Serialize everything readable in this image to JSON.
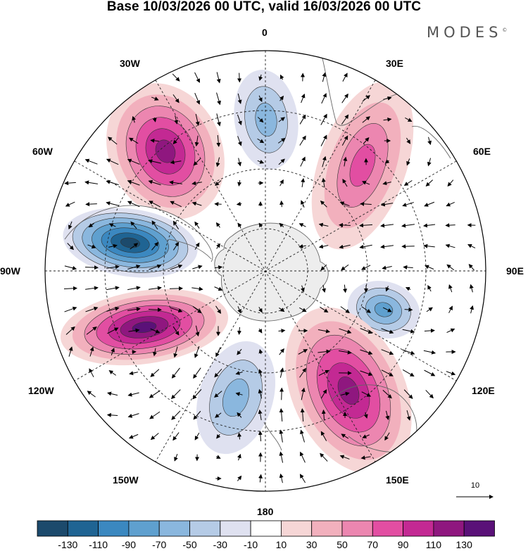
{
  "title": "Base 10/03/2026 00 UTC, valid 16/03/2026 00 UTC",
  "brand": "MODES",
  "brand_mark": "©",
  "longitude_labels": {
    "l0": "0",
    "l30e": "30E",
    "l60e": "60E",
    "l90e": "90E",
    "l120e": "120E",
    "l150e": "150E",
    "l180": "180",
    "l150w": "150W",
    "l120w": "120W",
    "l90w": "90W",
    "l60w": "60W",
    "l30w": "30W"
  },
  "vector_reference": {
    "label": "10",
    "magnitude": 10
  },
  "colorbar": {
    "ticks": [
      "-130",
      "-110",
      "-90",
      "-70",
      "-50",
      "-30",
      "-10",
      "10",
      "30",
      "50",
      "70",
      "90",
      "110",
      "130"
    ],
    "colors": [
      "#1c4a6c",
      "#1f6493",
      "#3b88c0",
      "#5fa0cf",
      "#8ab7de",
      "#b5cbe6",
      "#dfe1f0",
      "#ffffff",
      "#f6d6d6",
      "#f2b0bd",
      "#ec86b0",
      "#e24ea2",
      "#c32993",
      "#8f177f",
      "#5a1178"
    ]
  },
  "anomaly_centers": [
    {
      "id": "neg-atlantic",
      "value": -70
    },
    {
      "id": "pos-southatlantic",
      "value": 100
    },
    {
      "id": "pos-africa",
      "value": 70
    },
    {
      "id": "neg-pacific",
      "value": -140
    },
    {
      "id": "pos-pacific",
      "value": 130
    },
    {
      "id": "neg-indian",
      "value": -90
    },
    {
      "id": "neg-ross",
      "value": -60
    },
    {
      "id": "pos-tasman",
      "value": 110
    }
  ]
}
